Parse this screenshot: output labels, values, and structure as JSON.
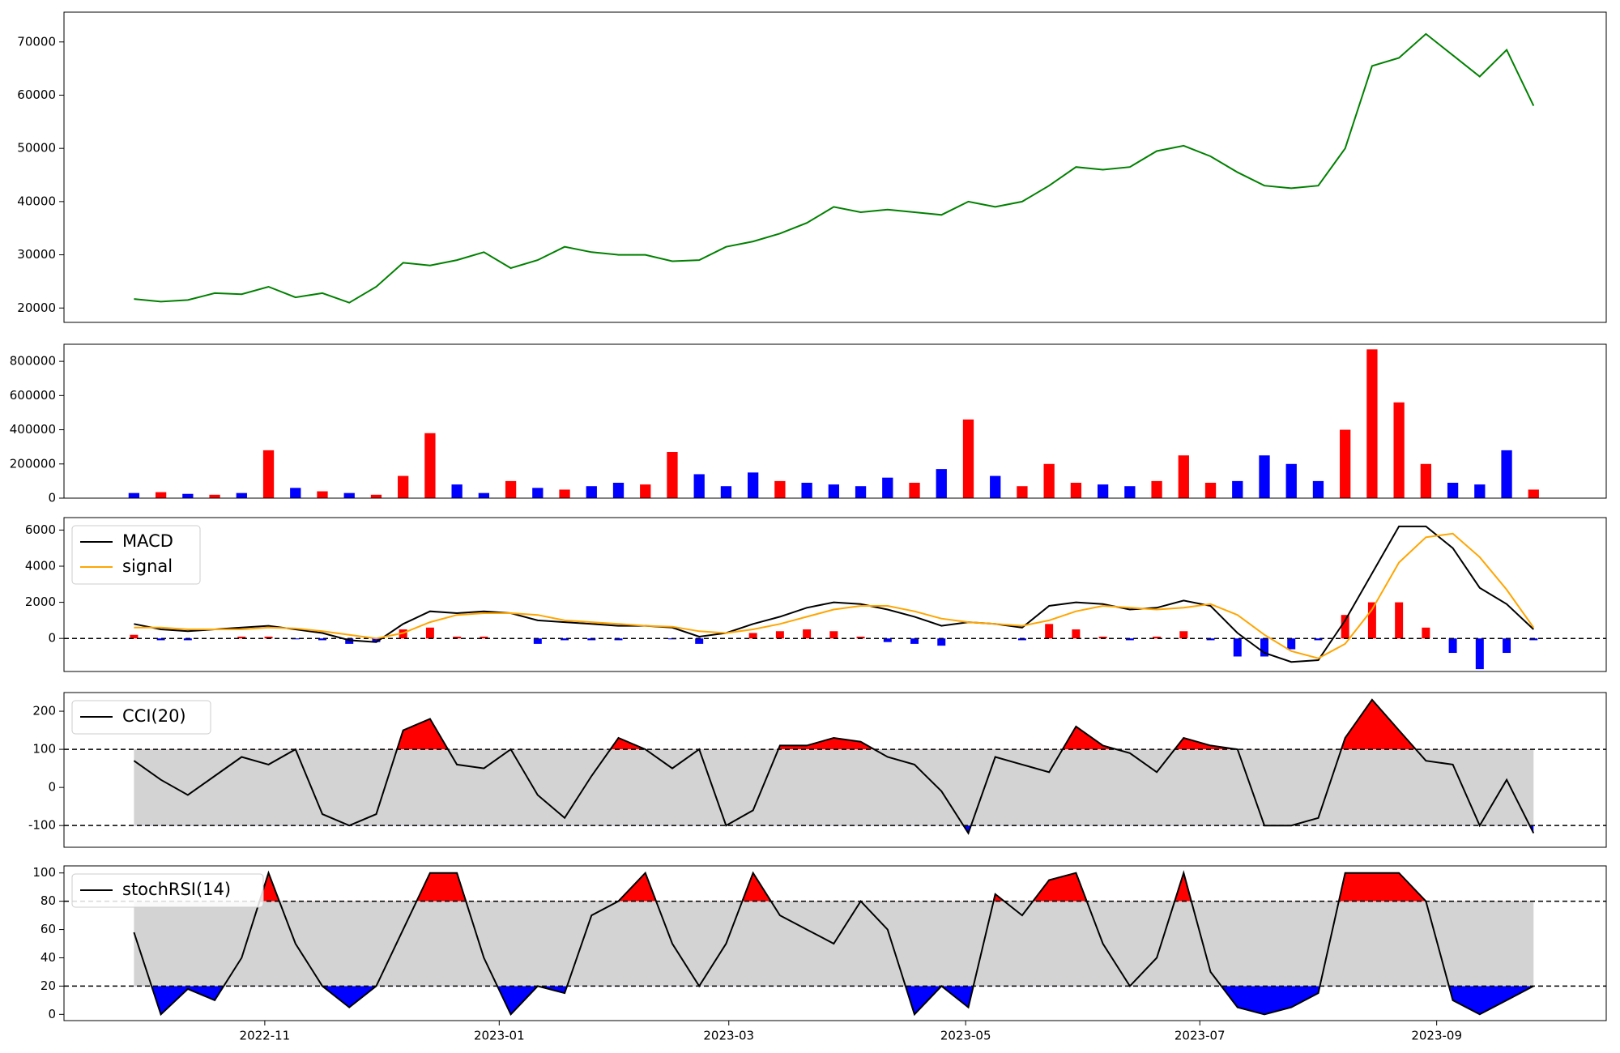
{
  "chart_data": [
    {
      "type": "line",
      "series": [
        {
          "color": "green",
          "values": [
            21700,
            21200,
            21500,
            22800,
            22600,
            24000,
            22000,
            22800,
            21000,
            24000,
            28500,
            28000,
            29000,
            30500,
            27500,
            29000,
            31500,
            30500,
            30000,
            30000,
            28800,
            29000,
            31500,
            32500,
            34000,
            36000,
            39000,
            38000,
            38500,
            38000,
            37500,
            40000,
            39000,
            40000,
            43000,
            46500,
            46000,
            46500,
            49500,
            50500,
            48500,
            45500,
            43000,
            42500,
            43000,
            50000,
            65500,
            67000,
            71500,
            67500,
            63500,
            68500,
            58000
          ]
        }
      ],
      "ylim": [
        17300,
        75600
      ],
      "yticks": [
        20000,
        30000,
        40000,
        50000,
        60000,
        70000
      ]
    },
    {
      "type": "bar",
      "values": [
        30000,
        35000,
        25000,
        20000,
        30000,
        280000,
        60000,
        40000,
        30000,
        20000,
        130000,
        380000,
        80000,
        30000,
        100000,
        60000,
        50000,
        70000,
        90000,
        80000,
        270000,
        140000,
        70000,
        150000,
        100000,
        90000,
        80000,
        70000,
        120000,
        90000,
        170000,
        460000,
        130000,
        70000,
        200000,
        90000,
        80000,
        70000,
        100000,
        250000,
        90000,
        100000,
        250000,
        200000,
        100000,
        400000,
        870000,
        560000,
        200000,
        90000,
        80000,
        280000,
        50000
      ],
      "colors": [
        "blue",
        "red",
        "blue",
        "red",
        "blue",
        "red",
        "blue",
        "red",
        "blue",
        "red",
        "red",
        "red",
        "blue",
        "blue",
        "red",
        "blue",
        "red",
        "blue",
        "blue",
        "red",
        "red",
        "blue",
        "blue",
        "blue",
        "red",
        "blue",
        "blue",
        "blue",
        "blue",
        "red",
        "blue",
        "red",
        "blue",
        "red",
        "red",
        "red",
        "blue",
        "blue",
        "red",
        "red",
        "red",
        "blue",
        "blue",
        "blue",
        "blue",
        "red",
        "red",
        "red",
        "red",
        "blue",
        "blue",
        "blue",
        "red"
      ],
      "ylim": [
        0,
        900000
      ],
      "yticks": [
        0,
        200000,
        400000,
        600000,
        800000
      ]
    },
    {
      "type": "macd",
      "series": [
        {
          "name": "MACD",
          "color": "black",
          "values": [
            800,
            500,
            400,
            500,
            600,
            700,
            500,
            300,
            -100,
            -200,
            800,
            1500,
            1400,
            1500,
            1400,
            1000,
            900,
            800,
            700,
            700,
            600,
            100,
            300,
            800,
            1200,
            1700,
            2000,
            1900,
            1600,
            1200,
            700,
            900,
            800,
            600,
            1800,
            2000,
            1900,
            1600,
            1700,
            2100,
            1800,
            300,
            -800,
            -1300,
            -1200,
            1000,
            3600,
            6200,
            6200,
            5000,
            2800,
            1900,
            500
          ]
        },
        {
          "name": "signal",
          "color": "orange",
          "values": [
            600,
            600,
            500,
            500,
            500,
            600,
            550,
            400,
            200,
            0,
            300,
            900,
            1300,
            1400,
            1400,
            1300,
            1000,
            900,
            800,
            700,
            650,
            400,
            300,
            500,
            800,
            1200,
            1600,
            1800,
            1800,
            1500,
            1100,
            900,
            800,
            700,
            1000,
            1500,
            1800,
            1700,
            1600,
            1700,
            1900,
            1300,
            200,
            -700,
            -1100,
            -300,
            1600,
            4200,
            5600,
            5800,
            4500,
            2700,
            600
          ]
        }
      ],
      "histogram": {
        "up_color": "red",
        "down_color": "blue",
        "values": [
          200,
          -100,
          -100,
          0,
          100,
          100,
          -50,
          -100,
          -300,
          -200,
          500,
          600,
          100,
          100,
          0,
          -300,
          -100,
          -100,
          -100,
          0,
          -50,
          -300,
          0,
          300,
          400,
          500,
          400,
          100,
          -200,
          -300,
          -400,
          0,
          0,
          -100,
          800,
          500,
          100,
          -100,
          100,
          400,
          -100,
          -1000,
          -1000,
          -600,
          -100,
          1300,
          2000,
          2000,
          600,
          -800,
          -1700,
          -800,
          -100
        ]
      },
      "hline": 0,
      "ylim": [
        -1830,
        6690
      ],
      "yticks": [
        0,
        2000,
        4000,
        6000
      ],
      "legend": "upper left"
    },
    {
      "type": "band",
      "series": [
        {
          "name": "CCI(20)",
          "color": "black",
          "values": [
            70,
            20,
            -20,
            30,
            80,
            60,
            100,
            -70,
            -100,
            -70,
            150,
            180,
            60,
            50,
            100,
            -20,
            -80,
            30,
            130,
            100,
            50,
            100,
            -100,
            -60,
            110,
            110,
            130,
            120,
            80,
            60,
            -10,
            -120,
            80,
            60,
            40,
            160,
            110,
            90,
            40,
            130,
            110,
            100,
            -100,
            -100,
            -80,
            130,
            230,
            150,
            70,
            60,
            -100,
            20,
            -120
          ]
        }
      ],
      "bounds": [
        -100,
        100
      ],
      "above_color": "red",
      "below_color": "blue",
      "band_color": "lightgray",
      "ylim": [
        -157,
        249
      ],
      "yticks": [
        -100,
        0,
        100,
        200
      ],
      "legend": "upper left"
    },
    {
      "type": "band",
      "series": [
        {
          "name": "stochRSI(14)",
          "color": "black",
          "values": [
            58,
            0,
            18,
            10,
            40,
            100,
            50,
            20,
            5,
            20,
            60,
            100,
            100,
            40,
            0,
            20,
            15,
            70,
            80,
            100,
            50,
            20,
            50,
            100,
            70,
            60,
            50,
            80,
            60,
            0,
            20,
            5,
            85,
            70,
            95,
            100,
            50,
            20,
            40,
            100,
            30,
            5,
            0,
            5,
            15,
            100,
            100,
            100,
            80,
            10,
            0,
            10,
            20
          ]
        }
      ],
      "bounds": [
        20,
        80
      ],
      "above_color": "red",
      "below_color": "blue",
      "band_color": "lightgray",
      "ylim": [
        -4.4,
        105
      ],
      "yticks": [
        0,
        20,
        40,
        60,
        80,
        100
      ],
      "legend": "upper left",
      "categories": [
        null,
        null,
        null,
        null,
        null,
        null,
        null,
        null,
        null,
        null,
        null,
        null,
        null,
        null,
        null,
        null,
        null,
        null,
        null,
        null,
        null,
        null,
        null,
        null,
        null,
        null,
        null,
        null,
        null,
        null,
        null,
        null,
        null,
        null,
        null,
        null,
        null,
        null,
        null,
        null,
        null,
        null,
        null,
        null,
        null,
        null,
        null,
        null,
        null,
        null,
        null,
        null,
        null
      ],
      "xlim": [
        -2.6,
        54.7
      ],
      "xticks": [
        {
          "value": 4.86,
          "label": "2022-11"
        },
        {
          "value": 13.57,
          "label": "2023-01"
        },
        {
          "value": 22.1,
          "label": "2023-03"
        },
        {
          "value": 30.9,
          "label": "2023-05"
        },
        {
          "value": 39.6,
          "label": "2023-07"
        },
        {
          "value": 48.4,
          "label": "2023-09"
        }
      ]
    }
  ]
}
